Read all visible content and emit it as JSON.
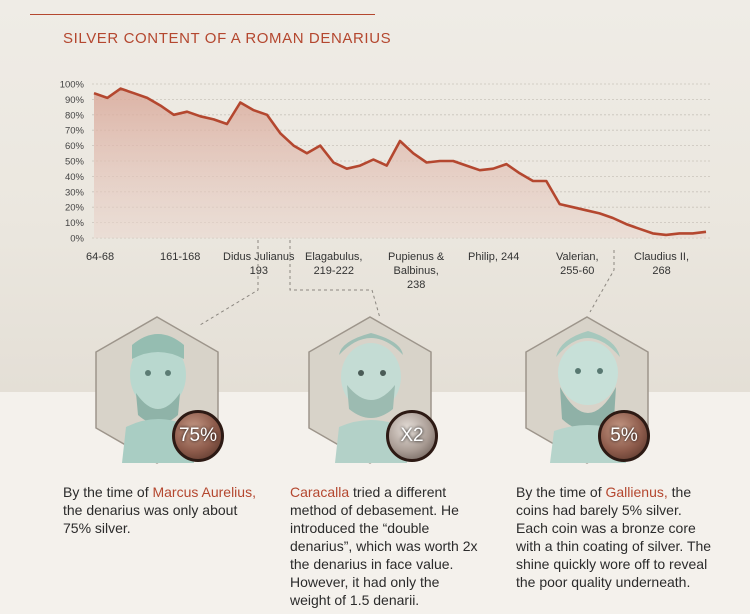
{
  "chart_data": {
    "type": "area",
    "title": "SILVER CONTENT OF A ROMAN DENARIUS",
    "y_ticks": [
      "0%",
      "10%",
      "20%",
      "30%",
      "40%",
      "50%",
      "60%",
      "70%",
      "80%",
      "90%",
      "100%"
    ],
    "ylim": [
      0,
      100
    ],
    "grid": true,
    "x_labels": [
      "64-68",
      "161-168",
      "Didus Julianus\n193",
      "Elagabulus,\n219-222",
      "Pupienus &\nBalbinus,\n238",
      "Philip, 244",
      "Valerian,\n255-60",
      "Claudius II,\n268"
    ],
    "values": [
      94,
      91,
      97,
      94,
      91,
      86,
      80,
      82,
      79,
      77,
      74,
      88,
      83,
      80,
      68,
      60,
      55,
      60,
      49,
      45,
      47,
      51,
      47,
      63,
      55,
      49,
      50,
      50,
      47,
      44,
      45,
      48,
      42,
      37,
      37,
      22,
      20,
      18,
      16,
      13,
      9,
      6,
      3,
      2,
      3,
      3,
      4
    ],
    "line_color": "#b4472f"
  },
  "panels": [
    {
      "badge": "75%",
      "text_pre": "By the time of ",
      "name": "Marcus Aurelius,",
      "text_post": " the denarius was only about 75% silver."
    },
    {
      "badge": "X2",
      "text_pre": "",
      "name": "Caracalla",
      "text_post": " tried a different method of debasement. He introduced the “double denarius”, which was worth 2x the denarius in face value. However, it had only the weight of 1.5 denarii."
    },
    {
      "badge": "5%",
      "text_pre": "By the time of ",
      "name": "Gallienus,",
      "text_post": " the coins had barely 5% silver. Each coin was a bronze core with a thin coating of silver. The shine quickly wore off to reveal the poor quality underneath."
    }
  ]
}
